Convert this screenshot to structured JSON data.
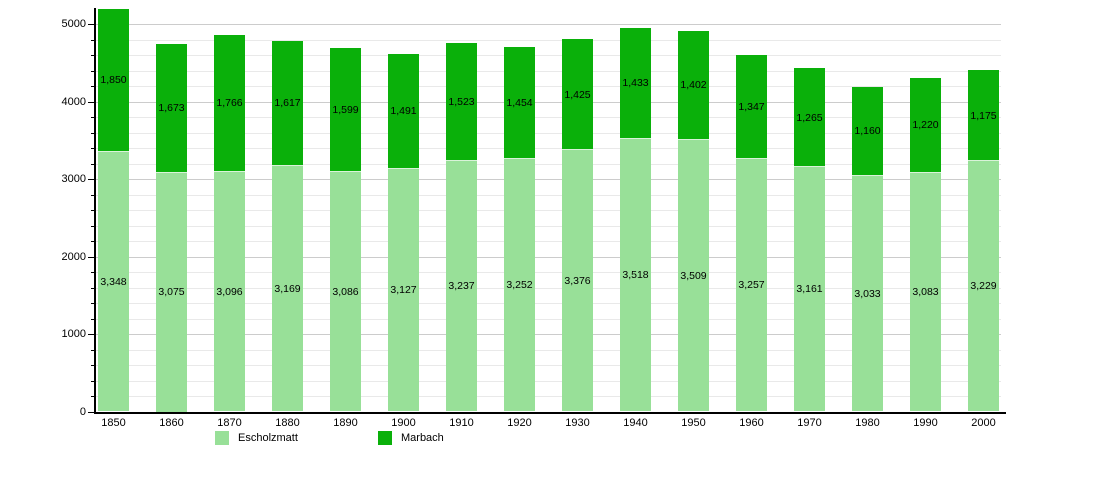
{
  "chart_data": {
    "type": "bar",
    "stacked": true,
    "title": "",
    "xlabel": "",
    "ylabel": "",
    "categories": [
      "1850",
      "1860",
      "1870",
      "1880",
      "1890",
      "1900",
      "1910",
      "1920",
      "1930",
      "1940",
      "1950",
      "1960",
      "1970",
      "1980",
      "1990",
      "2000"
    ],
    "series": [
      {
        "name": "Escholzmatt",
        "color": "#98e098",
        "values": [
          3348,
          3075,
          3096,
          3169,
          3086,
          3127,
          3237,
          3252,
          3376,
          3518,
          3509,
          3257,
          3161,
          3033,
          3083,
          3229
        ]
      },
      {
        "name": "Marbach",
        "color": "#0ab00a",
        "values": [
          1850,
          1673,
          1766,
          1617,
          1599,
          1491,
          1523,
          1454,
          1425,
          1433,
          1402,
          1347,
          1265,
          1160,
          1220,
          1175
        ]
      }
    ],
    "ylim": [
      0,
      5000
    ],
    "yticks": [
      0,
      1000,
      2000,
      3000,
      4000,
      5000
    ],
    "grid_interval": 200,
    "grid": true,
    "value_labels": true,
    "legend_position": "bottom"
  }
}
